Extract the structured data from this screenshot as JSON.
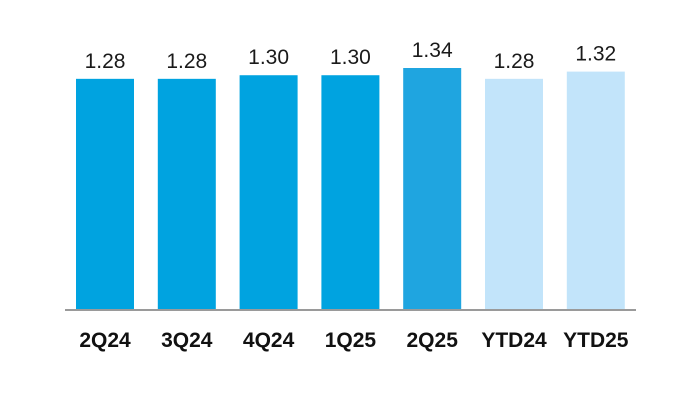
{
  "chart_data": {
    "type": "bar",
    "categories": [
      "2Q24",
      "3Q24",
      "4Q24",
      "1Q25",
      "2Q25",
      "YTD24",
      "YTD25"
    ],
    "values": [
      1.28,
      1.28,
      1.3,
      1.3,
      1.34,
      1.28,
      1.32
    ],
    "value_labels": [
      "1.28",
      "1.28",
      "1.30",
      "1.30",
      "1.34",
      "1.28",
      "1.32"
    ],
    "ylim": [
      0,
      1.34
    ],
    "grid": false,
    "legend": "none",
    "title": "",
    "xlabel": "",
    "ylabel": "",
    "bar_colors": [
      "#00a3e0",
      "#00a3e0",
      "#00a3e0",
      "#00a3e0",
      "#1fa5e0",
      "#c2e4fa",
      "#c2e4fa"
    ],
    "axis_color": "#9a9a9a"
  }
}
